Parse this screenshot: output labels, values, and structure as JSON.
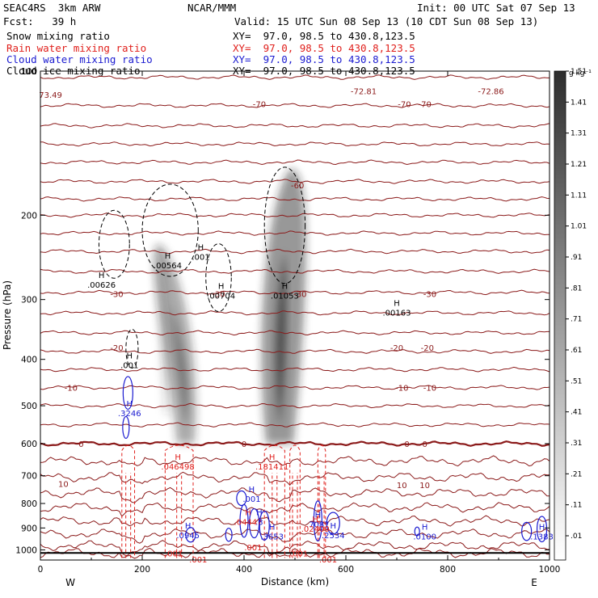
{
  "header": {
    "model": "SEAC4RS  3km ARW",
    "center": "NCAR/MMM",
    "init": "Init: 00 UTC Sat 07 Sep 13",
    "fcst": "Fcst:   39 h",
    "valid": "Valid: 15 UTC Sun 08 Sep 13 (10 CDT Sun 08 Sep 13)",
    "fields": [
      {
        "name": "Snow mixing ratio",
        "xy": "XY=  97.0, 98.5 to 430.8,123.5",
        "color": "#000000"
      },
      {
        "name": "Rain water mixing ratio",
        "xy": "XY=  97.0, 98.5 to 430.8,123.5",
        "color": "#e0201c"
      },
      {
        "name": "Cloud water mixing ratio",
        "xy": "XY=  97.0, 98.5 to 430.8,123.5",
        "color": "#1a1ad0"
      },
      {
        "name": "Cloud ice mixing ratio",
        "xy": "XY=  97.0, 98.5 to 430.8,123.5",
        "color": "#000000"
      }
    ]
  },
  "chart_data": {
    "type": "heatmap",
    "xlabel": "Distance (km)",
    "ylabel": "Pressure (hPa)",
    "xlim": [
      0,
      1000
    ],
    "ylim": [
      1050,
      100
    ],
    "y_scale": "log",
    "x_ticks": [
      0,
      200,
      400,
      600,
      800,
      1000
    ],
    "y_ticks": [
      100,
      200,
      300,
      400,
      500,
      600,
      700,
      800,
      900,
      1000
    ],
    "x_end_labels": {
      "left": "W",
      "right": "E"
    },
    "colorbar": {
      "unit": "g kg⁻¹",
      "levels": [
        ".01",
        ".11",
        ".21",
        ".31",
        ".41",
        ".51",
        ".61",
        ".71",
        ".81",
        ".91",
        "1.01",
        "1.11",
        "1.21",
        "1.31",
        "1.41",
        "1.51"
      ]
    },
    "temperature_labels": [
      {
        "x": 20,
        "p": 112,
        "text": "73.49"
      },
      {
        "x": 430,
        "p": 117,
        "text": "-70"
      },
      {
        "x": 635,
        "p": 110,
        "text": "-72.81"
      },
      {
        "x": 715,
        "p": 117,
        "text": "-70"
      },
      {
        "x": 755,
        "p": 117,
        "text": "-70"
      },
      {
        "x": 885,
        "p": 110,
        "text": "-72.86"
      },
      {
        "x": 505,
        "p": 173,
        "text": "-60"
      },
      {
        "x": 350,
        "p": 292,
        "text": "-30"
      },
      {
        "x": 510,
        "p": 292,
        "text": "-30"
      },
      {
        "x": 150,
        "p": 292,
        "text": "-30"
      },
      {
        "x": 765,
        "p": 292,
        "text": "-30"
      },
      {
        "x": 150,
        "p": 378,
        "text": "-20"
      },
      {
        "x": 700,
        "p": 378,
        "text": "-20"
      },
      {
        "x": 760,
        "p": 378,
        "text": "-20"
      },
      {
        "x": 60,
        "p": 458,
        "text": "-10"
      },
      {
        "x": 710,
        "p": 458,
        "text": "-10"
      },
      {
        "x": 765,
        "p": 458,
        "text": "-10"
      },
      {
        "x": 80,
        "p": 600,
        "text": "0"
      },
      {
        "x": 400,
        "p": 600,
        "text": "0"
      },
      {
        "x": 720,
        "p": 600,
        "text": "0"
      },
      {
        "x": 755,
        "p": 600,
        "text": "0"
      },
      {
        "x": 45,
        "p": 727,
        "text": "10"
      },
      {
        "x": 710,
        "p": 731,
        "text": "10"
      },
      {
        "x": 755,
        "p": 731,
        "text": "10"
      }
    ],
    "h_labels": [
      {
        "x": 120,
        "p": 280,
        "value": ".00626",
        "color": "#000000"
      },
      {
        "x": 250,
        "p": 255,
        "value": ".00564",
        "color": "#000000"
      },
      {
        "x": 315,
        "p": 245,
        "value": ".001",
        "color": "#000000"
      },
      {
        "x": 355,
        "p": 295,
        "value": ".00704",
        "color": "#000000"
      },
      {
        "x": 480,
        "p": 295,
        "value": ".01053",
        "color": "#000000"
      },
      {
        "x": 700,
        "p": 320,
        "value": ".00163",
        "color": "#000000"
      },
      {
        "x": 175,
        "p": 412,
        "value": ".001",
        "color": "#000000"
      },
      {
        "x": 175,
        "p": 520,
        "value": ".3246",
        "color": "#1a1ad0"
      },
      {
        "x": 270,
        "p": 671,
        "value": ".046498",
        "color": "#e0201c"
      },
      {
        "x": 455,
        "p": 671,
        "value": ".181411",
        "color": "#e0201c"
      },
      {
        "x": 415,
        "p": 785,
        "value": ".001",
        "color": "#1a1ad0"
      },
      {
        "x": 408,
        "p": 876,
        "value": ".04447",
        "color": "#e0201c"
      },
      {
        "x": 430,
        "p": 876,
        "value": ".3",
        "color": "#1a1ad0"
      },
      {
        "x": 545,
        "p": 886,
        "value": ".7087",
        "color": "#1a1ad0"
      },
      {
        "x": 290,
        "p": 935,
        "value": ".0945",
        "color": "#1a1ad0"
      },
      {
        "x": 455,
        "p": 940,
        "value": ".3653",
        "color": "#1a1ad0"
      },
      {
        "x": 575,
        "p": 935,
        "value": ".2534",
        "color": "#1a1ad0"
      },
      {
        "x": 755,
        "p": 940,
        "value": ".0100",
        "color": "#1a1ad0"
      },
      {
        "x": 985,
        "p": 940,
        "value": ".1383",
        "color": "#1a1ad0"
      },
      {
        "x": 540,
        "p": 905,
        "value": ".02409",
        "color": "#e0201c"
      }
    ],
    "small_labels": [
      {
        "x": 262,
        "p": 1019,
        "text": ".001",
        "color": "#e0201c"
      },
      {
        "x": 310,
        "p": 1050,
        "text": ".001",
        "color": "#e0201c"
      },
      {
        "x": 418,
        "p": 990,
        "text": ".001",
        "color": "#e0201c"
      },
      {
        "x": 508,
        "p": 1019,
        "text": ".001",
        "color": "#e0201c"
      },
      {
        "x": 565,
        "p": 1050,
        "text": ".001",
        "color": "#e0201c"
      }
    ],
    "snow_columns": [
      {
        "x_base": 285,
        "x_top": 240,
        "p_top": 230,
        "p_bot": 600,
        "width": 22,
        "intensity": 0.7
      },
      {
        "x_base": 470,
        "x_top": 505,
        "p_top": 160,
        "p_bot": 600,
        "width": 34,
        "intensity": 0.85
      },
      {
        "x_base": 250,
        "x_top": 230,
        "p_top": 230,
        "p_bot": 520,
        "width": 10,
        "intensity": 0.25
      }
    ]
  }
}
